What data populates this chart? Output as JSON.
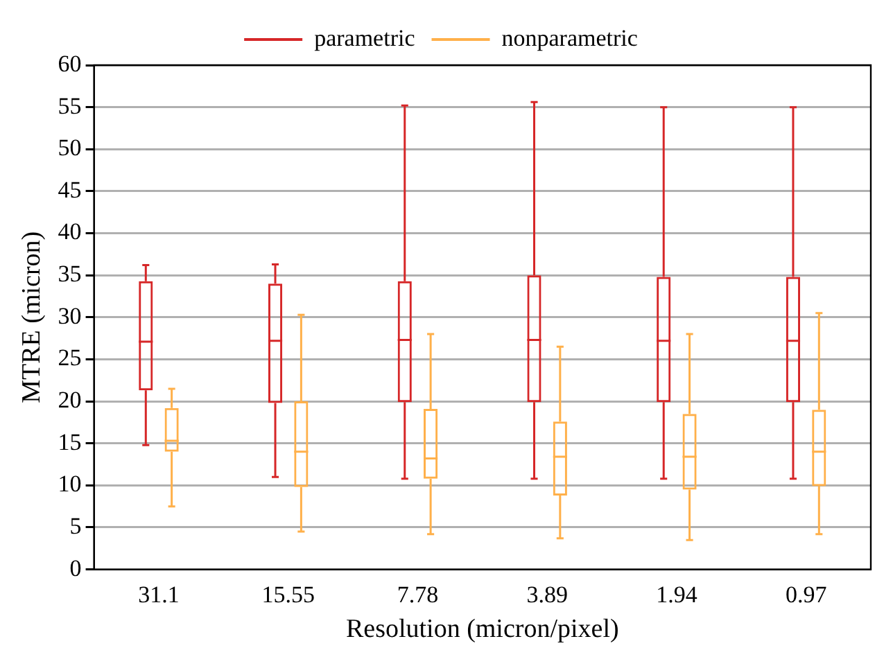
{
  "chart_data": {
    "type": "box",
    "xlabel": "Resolution (micron/pixel)",
    "ylabel": "MTRE (micron)",
    "categories": [
      "31.1",
      "15.55",
      "7.78",
      "3.89",
      "1.94",
      "0.97"
    ],
    "ylim": [
      0,
      60
    ],
    "yticks": [
      0,
      5,
      10,
      15,
      20,
      25,
      30,
      35,
      40,
      45,
      50,
      55,
      60
    ],
    "grid": "y",
    "legend": "top",
    "series": [
      {
        "name": "parametric",
        "color": "#d62728",
        "boxes": [
          {
            "low": 14.8,
            "q1": 21.3,
            "median": 27.1,
            "q3": 34.3,
            "high": 36.2
          },
          {
            "low": 11,
            "q1": 19.8,
            "median": 27.2,
            "q3": 34,
            "high": 36.3
          },
          {
            "low": 10.8,
            "q1": 19.9,
            "median": 27.3,
            "q3": 34.3,
            "high": 55.2
          },
          {
            "low": 10.8,
            "q1": 19.9,
            "median": 27.3,
            "q3": 35,
            "high": 55.6
          },
          {
            "low": 10.8,
            "q1": 19.9,
            "median": 27.2,
            "q3": 34.8,
            "high": 55
          },
          {
            "low": 10.8,
            "q1": 19.9,
            "median": 27.2,
            "q3": 34.8,
            "high": 55
          }
        ]
      },
      {
        "name": "nonparametric",
        "color": "#ffb04a",
        "boxes": [
          {
            "low": 7.5,
            "q1": 14,
            "median": 15.3,
            "q3": 19.2,
            "high": 21.5
          },
          {
            "low": 4.5,
            "q1": 9.8,
            "median": 14,
            "q3": 20,
            "high": 30.3
          },
          {
            "low": 4.2,
            "q1": 10.8,
            "median": 13.2,
            "q3": 19.1,
            "high": 28
          },
          {
            "low": 3.7,
            "q1": 8.8,
            "median": 13.4,
            "q3": 17.6,
            "high": 26.5
          },
          {
            "low": 3.5,
            "q1": 9.5,
            "median": 13.4,
            "q3": 18.5,
            "high": 28
          },
          {
            "low": 4.2,
            "q1": 9.9,
            "median": 14,
            "q3": 19,
            "high": 30.5
          }
        ]
      }
    ]
  }
}
